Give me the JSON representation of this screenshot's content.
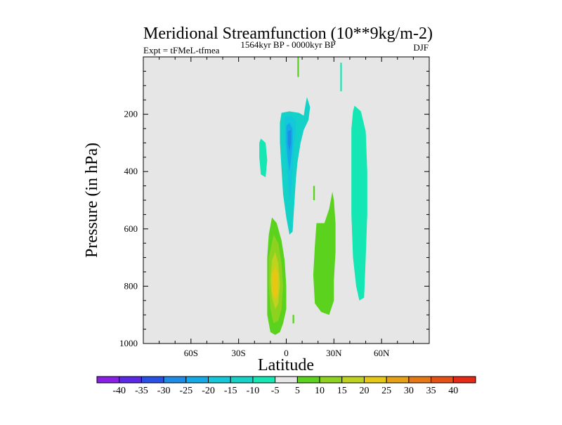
{
  "chart_data": {
    "type": "contour",
    "title": "Meridional Streamfunction (10**9kg/m-2)",
    "left_string": "Expt = tFMeL-tfmea",
    "center_string": "1564kyr BP - 0000kyr BP",
    "right_string": "DJF",
    "xlabel": "Latitude",
    "ylabel": "Pressure (in hPa)",
    "xlim": [
      -90,
      90
    ],
    "ylim": [
      0,
      1000
    ],
    "x_ticks": [
      {
        "value": -60,
        "label": "60S"
      },
      {
        "value": -30,
        "label": "30S"
      },
      {
        "value": 0,
        "label": "0"
      },
      {
        "value": 30,
        "label": "30N"
      },
      {
        "value": 60,
        "label": "60N"
      }
    ],
    "y_ticks": [
      {
        "value": 200,
        "label": "200"
      },
      {
        "value": 400,
        "label": "400"
      },
      {
        "value": 600,
        "label": "600"
      },
      {
        "value": 800,
        "label": "800"
      },
      {
        "value": 1000,
        "label": "1000"
      }
    ],
    "background_color": "#e6e6e6",
    "colorbar": {
      "levels": [
        "-40",
        "-35",
        "-30",
        "-25",
        "-20",
        "-15",
        "-10",
        "-5",
        "5",
        "10",
        "15",
        "20",
        "25",
        "30",
        "35",
        "40"
      ],
      "colors": [
        "#8b1ee6",
        "#5a28e6",
        "#2850e6",
        "#1e8ce6",
        "#14aae6",
        "#14c8dc",
        "#14d2c8",
        "#14e6b4",
        "#e6e6e6",
        "#5ad21e",
        "#8cd21e",
        "#bed21e",
        "#e6c814",
        "#e6a014",
        "#e67814",
        "#e65014",
        "#e62814"
      ]
    },
    "regions": [
      {
        "name": "sh-cell-upper",
        "value": -7,
        "color": "#14e6b4",
        "outline": [
          [
            -16,
            285
          ],
          [
            -13,
            300
          ],
          [
            -12,
            360
          ],
          [
            -13,
            420
          ],
          [
            -16,
            410
          ],
          [
            -17,
            350
          ],
          [
            -17,
            300
          ]
        ]
      },
      {
        "name": "equatorial-upper-negative",
        "value": -10,
        "color": "#14d2c8",
        "outline": [
          [
            -3,
            195
          ],
          [
            2,
            190
          ],
          [
            8,
            195
          ],
          [
            11,
            205
          ],
          [
            12,
            170
          ],
          [
            13,
            140
          ],
          [
            15,
            175
          ],
          [
            14,
            220
          ],
          [
            11,
            255
          ],
          [
            9,
            300
          ],
          [
            7,
            370
          ],
          [
            6,
            430
          ],
          [
            5,
            520
          ],
          [
            4,
            610
          ],
          [
            2,
            620
          ],
          [
            0,
            560
          ],
          [
            -2,
            480
          ],
          [
            -3,
            390
          ],
          [
            -4,
            300
          ],
          [
            -4,
            230
          ]
        ]
      },
      {
        "name": "equatorial-upper-negative-core",
        "value": -15,
        "color": "#14c8dc",
        "outline": [
          [
            -1,
            210
          ],
          [
            3,
            205
          ],
          [
            6,
            220
          ],
          [
            6,
            260
          ],
          [
            5,
            320
          ],
          [
            4,
            400
          ],
          [
            3,
            480
          ],
          [
            2,
            500
          ],
          [
            1,
            440
          ],
          [
            0,
            360
          ],
          [
            -1,
            300
          ],
          [
            -1,
            250
          ]
        ]
      },
      {
        "name": "equatorial-upper-negative-peak",
        "value": -20,
        "color": "#14aae6",
        "outline": [
          [
            0,
            240
          ],
          [
            2,
            230
          ],
          [
            4,
            250
          ],
          [
            4,
            300
          ],
          [
            3,
            360
          ],
          [
            2,
            400
          ],
          [
            1,
            360
          ],
          [
            0,
            300
          ]
        ]
      },
      {
        "name": "equatorial-upper-negative-max",
        "value": -25,
        "color": "#1e8ce6",
        "outline": [
          [
            1,
            260
          ],
          [
            3,
            255
          ],
          [
            3,
            300
          ],
          [
            2,
            330
          ],
          [
            1,
            300
          ]
        ]
      },
      {
        "name": "nh-upper-cell",
        "value": -7,
        "color": "#14e6b4",
        "outline": [
          [
            43,
            170
          ],
          [
            47,
            190
          ],
          [
            50,
            260
          ],
          [
            51,
            400
          ],
          [
            51,
            550
          ],
          [
            50,
            700
          ],
          [
            49,
            840
          ],
          [
            46,
            850
          ],
          [
            44,
            800
          ],
          [
            42,
            700
          ],
          [
            41,
            550
          ],
          [
            41,
            400
          ],
          [
            41,
            250
          ],
          [
            42,
            190
          ]
        ]
      },
      {
        "name": "hadley-positive-sh",
        "value": 8,
        "color": "#5ad21e",
        "outline": [
          [
            -9,
            560
          ],
          [
            -6,
            580
          ],
          [
            -3,
            640
          ],
          [
            -1,
            710
          ],
          [
            0,
            800
          ],
          [
            0,
            880
          ],
          [
            -2,
            930
          ],
          [
            -4,
            960
          ],
          [
            -7,
            970
          ],
          [
            -10,
            960
          ],
          [
            -12,
            900
          ],
          [
            -12,
            800
          ],
          [
            -12,
            700
          ],
          [
            -11,
            620
          ]
        ]
      },
      {
        "name": "hadley-positive-sh-15",
        "value": 15,
        "color": "#8cd21e",
        "outline": [
          [
            -8,
            620
          ],
          [
            -5,
            650
          ],
          [
            -3,
            720
          ],
          [
            -2,
            800
          ],
          [
            -3,
            880
          ],
          [
            -5,
            920
          ],
          [
            -8,
            930
          ],
          [
            -10,
            880
          ],
          [
            -11,
            800
          ],
          [
            -11,
            700
          ]
        ]
      },
      {
        "name": "hadley-positive-sh-20",
        "value": 20,
        "color": "#bed21e",
        "outline": [
          [
            -7,
            680
          ],
          [
            -5,
            720
          ],
          [
            -4,
            790
          ],
          [
            -5,
            860
          ],
          [
            -7,
            880
          ],
          [
            -9,
            840
          ],
          [
            -10,
            780
          ],
          [
            -9,
            710
          ]
        ]
      },
      {
        "name": "hadley-positive-sh-25",
        "value": 25,
        "color": "#e6c814",
        "outline": [
          [
            -7,
            730
          ],
          [
            -5,
            760
          ],
          [
            -5,
            820
          ],
          [
            -7,
            850
          ],
          [
            -9,
            820
          ],
          [
            -9,
            760
          ]
        ]
      },
      {
        "name": "nh-positive-cell",
        "value": 8,
        "color": "#5ad21e",
        "outline": [
          [
            24,
            580
          ],
          [
            27,
            530
          ],
          [
            29,
            470
          ],
          [
            30,
            500
          ],
          [
            31,
            580
          ],
          [
            31,
            680
          ],
          [
            30,
            780
          ],
          [
            30,
            850
          ],
          [
            27,
            900
          ],
          [
            22,
            890
          ],
          [
            18,
            860
          ],
          [
            17,
            760
          ],
          [
            18,
            660
          ],
          [
            19,
            580
          ]
        ]
      },
      {
        "name": "top-streak-1",
        "value": 7,
        "color": "#5ad21e",
        "outline": [
          [
            7,
            0
          ],
          [
            8,
            0
          ],
          [
            8,
            70
          ],
          [
            7,
            70
          ]
        ]
      },
      {
        "name": "top-streak-2",
        "value": -7,
        "color": "#14e6b4",
        "outline": [
          [
            34,
            20
          ],
          [
            35,
            20
          ],
          [
            35,
            120
          ],
          [
            34,
            120
          ]
        ]
      },
      {
        "name": "small-streak-3",
        "value": 7,
        "color": "#5ad21e",
        "outline": [
          [
            17,
            450
          ],
          [
            18,
            450
          ],
          [
            18,
            500
          ],
          [
            17,
            500
          ]
        ]
      },
      {
        "name": "small-streak-4",
        "value": 7,
        "color": "#5ad21e",
        "outline": [
          [
            4,
            900
          ],
          [
            5,
            900
          ],
          [
            5,
            930
          ],
          [
            4,
            930
          ]
        ]
      }
    ]
  }
}
